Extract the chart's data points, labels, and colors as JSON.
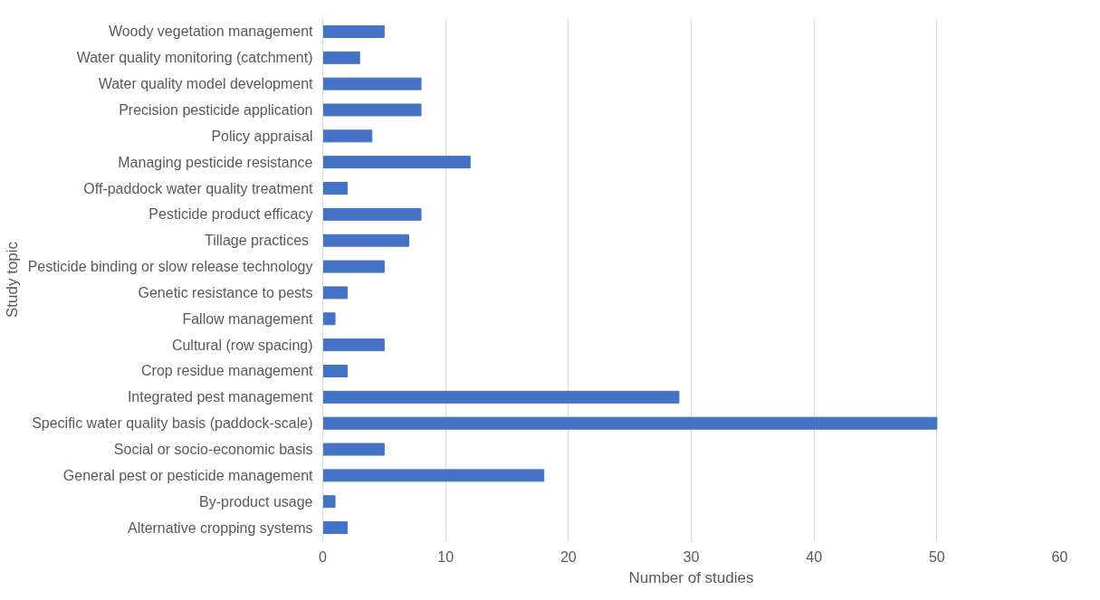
{
  "chart_data": {
    "type": "bar",
    "orientation": "horizontal",
    "xlabel": "Number of studies",
    "ylabel": "Study topic",
    "categories": [
      "Woody vegetation management",
      "Water quality monitoring (catchment)",
      "Water quality model development",
      "Precision pesticide application",
      "Policy appraisal",
      "Managing pesticide resistance",
      "Off-paddock water quality treatment",
      "Pesticide product efficacy",
      "Tillage practices ",
      "Pesticide binding or slow release technology",
      "Genetic resistance to pests",
      "Fallow management",
      "Cultural (row spacing)",
      "Crop residue management",
      "Integrated pest management",
      "Specific water quality basis (paddock-scale)",
      "Social or socio-economic basis",
      "General pest or pesticide management",
      "By-product usage",
      "Alternative cropping systems"
    ],
    "values": [
      5,
      3,
      8,
      8,
      4,
      12,
      2,
      8,
      7,
      5,
      2,
      1,
      5,
      2,
      29,
      50,
      5,
      18,
      1,
      2
    ],
    "color": "#4472c4",
    "xlim": [
      0,
      60
    ],
    "xticks": [
      0,
      10,
      20,
      30,
      40,
      50,
      60
    ],
    "grid": "x"
  }
}
